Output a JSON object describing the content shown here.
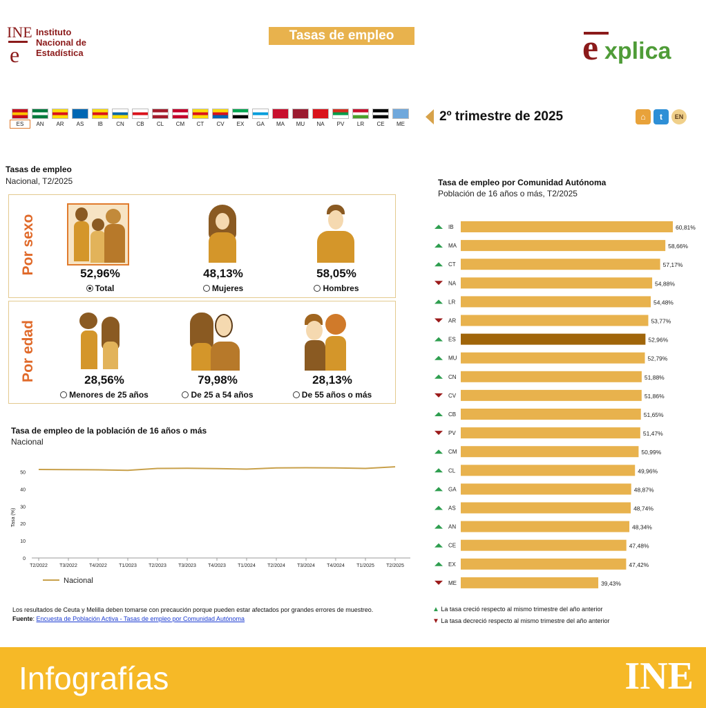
{
  "header": {
    "ine_logo_text": [
      "Instituto",
      "Nacional de",
      "Estadística"
    ],
    "ine_mark_top": "INE",
    "ine_mark_e": "e",
    "title": "Tasas de empleo",
    "explica_logo": "explica"
  },
  "flags": [
    {
      "code": "ES",
      "colors": [
        "#c60b1e",
        "#ffc400",
        "#c60b1e"
      ],
      "active": true
    },
    {
      "code": "AN",
      "colors": [
        "#007a3d",
        "#ffffff",
        "#007a3d"
      ]
    },
    {
      "code": "AR",
      "colors": [
        "#fcdd09",
        "#da121a",
        "#fcdd09"
      ]
    },
    {
      "code": "AS",
      "colors": [
        "#0066b3",
        "#0066b3",
        "#0066b3"
      ]
    },
    {
      "code": "IB",
      "colors": [
        "#fcdd09",
        "#da121a",
        "#fcdd09"
      ]
    },
    {
      "code": "CN",
      "colors": [
        "#ffffff",
        "#0768a9",
        "#fcdd09"
      ]
    },
    {
      "code": "CB",
      "colors": [
        "#ffffff",
        "#da121a",
        "#ffffff"
      ]
    },
    {
      "code": "CL",
      "colors": [
        "#a41c2c",
        "#ffffff",
        "#a41c2c"
      ]
    },
    {
      "code": "CM",
      "colors": [
        "#c4002b",
        "#ffffff",
        "#c4002b"
      ]
    },
    {
      "code": "CT",
      "colors": [
        "#fcdd09",
        "#da121a",
        "#fcdd09"
      ]
    },
    {
      "code": "CV",
      "colors": [
        "#fcdd09",
        "#da121a",
        "#0066b3"
      ]
    },
    {
      "code": "EX",
      "colors": [
        "#00a650",
        "#ffffff",
        "#000000"
      ]
    },
    {
      "code": "GA",
      "colors": [
        "#ffffff",
        "#009ddb",
        "#ffffff"
      ]
    },
    {
      "code": "MA",
      "colors": [
        "#c8102e",
        "#c8102e",
        "#c8102e"
      ]
    },
    {
      "code": "MU",
      "colors": [
        "#9b1b30",
        "#9b1b30",
        "#9b1b30"
      ]
    },
    {
      "code": "NA",
      "colors": [
        "#da121a",
        "#da121a",
        "#da121a"
      ]
    },
    {
      "code": "PV",
      "colors": [
        "#d52b1e",
        "#009b48",
        "#ffffff"
      ]
    },
    {
      "code": "LR",
      "colors": [
        "#c8102e",
        "#ffffff",
        "#4aa02c"
      ]
    },
    {
      "code": "CE",
      "colors": [
        "#000000",
        "#ffffff",
        "#000000"
      ]
    },
    {
      "code": "ME",
      "colors": [
        "#6fa8dc",
        "#6fa8dc",
        "#6fa8dc"
      ]
    }
  ],
  "period": {
    "label": "2º trimestre de 2025"
  },
  "icons": {
    "lang": "EN"
  },
  "left": {
    "title": "Tasas de empleo",
    "subtitle": "Nacional, T2/2025",
    "sexo": {
      "label": "Por sexo",
      "items": [
        {
          "pct": "52,96%",
          "label": "Total",
          "selected": true
        },
        {
          "pct": "48,13%",
          "label": "Mujeres"
        },
        {
          "pct": "58,05%",
          "label": "Hombres"
        }
      ]
    },
    "edad": {
      "label": "Por edad",
      "items": [
        {
          "pct": "28,56%",
          "label": "Menores de 25 años"
        },
        {
          "pct": "79,98%",
          "label": "De 25 a 54 años"
        },
        {
          "pct": "28,13%",
          "label": "De 55 años o más"
        }
      ]
    }
  },
  "line_section": {
    "title": "Tasa de empleo de la población de 16 años o más",
    "subtitle": "Nacional"
  },
  "notes": {
    "text": "Los resultados de Ceuta y Melilla deben tomarse con precaución porque pueden estar afectados por grandes errores de muestreo.",
    "source_label": "Fuente",
    "source_link": "Encuesta de Población Activa - Tasas de empleo por Comunidad Autónoma"
  },
  "bar_section": {
    "title": "Tasa de empleo por Comunidad Autónoma",
    "subtitle": "Población de 16 años o más, T2/2025"
  },
  "bar_legend": {
    "up": "La tasa creció respecto al mismo trimestre del año anterior",
    "down": "La tasa decreció respecto al mismo trimestre del año anterior"
  },
  "colors": {
    "bar": "#e8b24d",
    "bar_highlight": "#a0650a",
    "up": "#2e9e4f",
    "down": "#9b1b1b",
    "line": "#c8a04a"
  },
  "footer": {
    "text": "Infografías",
    "logo": "INE"
  },
  "chart_data": [
    {
      "type": "line",
      "title": "Tasa de empleo de la población de 16 años o más",
      "subtitle": "Nacional",
      "x": [
        "T2/2022",
        "T3/2022",
        "T4/2022",
        "T1/2023",
        "T2/2023",
        "T3/2023",
        "T4/2023",
        "T1/2024",
        "T2/2024",
        "T3/2024",
        "T4/2024",
        "T1/2025",
        "T2/2025"
      ],
      "series": [
        {
          "name": "Nacional",
          "values": [
            51.4,
            51.3,
            51.2,
            50.9,
            52.0,
            52.1,
            51.9,
            51.6,
            52.3,
            52.4,
            52.3,
            52.0,
            52.96
          ]
        }
      ],
      "ylabel": "Tasa (%)",
      "yticks": [
        0,
        10,
        20,
        30,
        40,
        50
      ],
      "ylim": [
        0,
        55
      ]
    },
    {
      "type": "bar",
      "orientation": "horizontal",
      "title": "Tasa de empleo por Comunidad Autónoma",
      "subtitle": "Población de 16 años o más, T2/2025",
      "categories": [
        "IB",
        "MA",
        "CT",
        "NA",
        "LR",
        "AR",
        "ES",
        "MU",
        "CN",
        "CV",
        "CB",
        "PV",
        "CM",
        "CL",
        "GA",
        "AS",
        "AN",
        "CE",
        "EX",
        "ME"
      ],
      "values": [
        60.81,
        58.66,
        57.17,
        54.88,
        54.48,
        53.77,
        52.96,
        52.79,
        51.88,
        51.86,
        51.65,
        51.47,
        50.99,
        49.96,
        48.87,
        48.74,
        48.34,
        47.48,
        47.42,
        39.43
      ],
      "labels": [
        "60,81%",
        "58,66%",
        "57,17%",
        "54,88%",
        "54,48%",
        "53,77%",
        "52,96%",
        "52,79%",
        "51,88%",
        "51,86%",
        "51,65%",
        "51,47%",
        "50,99%",
        "49,96%",
        "48,87%",
        "48,74%",
        "48,34%",
        "47,48%",
        "47,42%",
        "39,43%"
      ],
      "trend": [
        "up",
        "up",
        "up",
        "down",
        "up",
        "down",
        "up",
        "up",
        "up",
        "down",
        "up",
        "down",
        "up",
        "up",
        "up",
        "up",
        "up",
        "up",
        "up",
        "down"
      ],
      "highlight": "ES"
    }
  ]
}
